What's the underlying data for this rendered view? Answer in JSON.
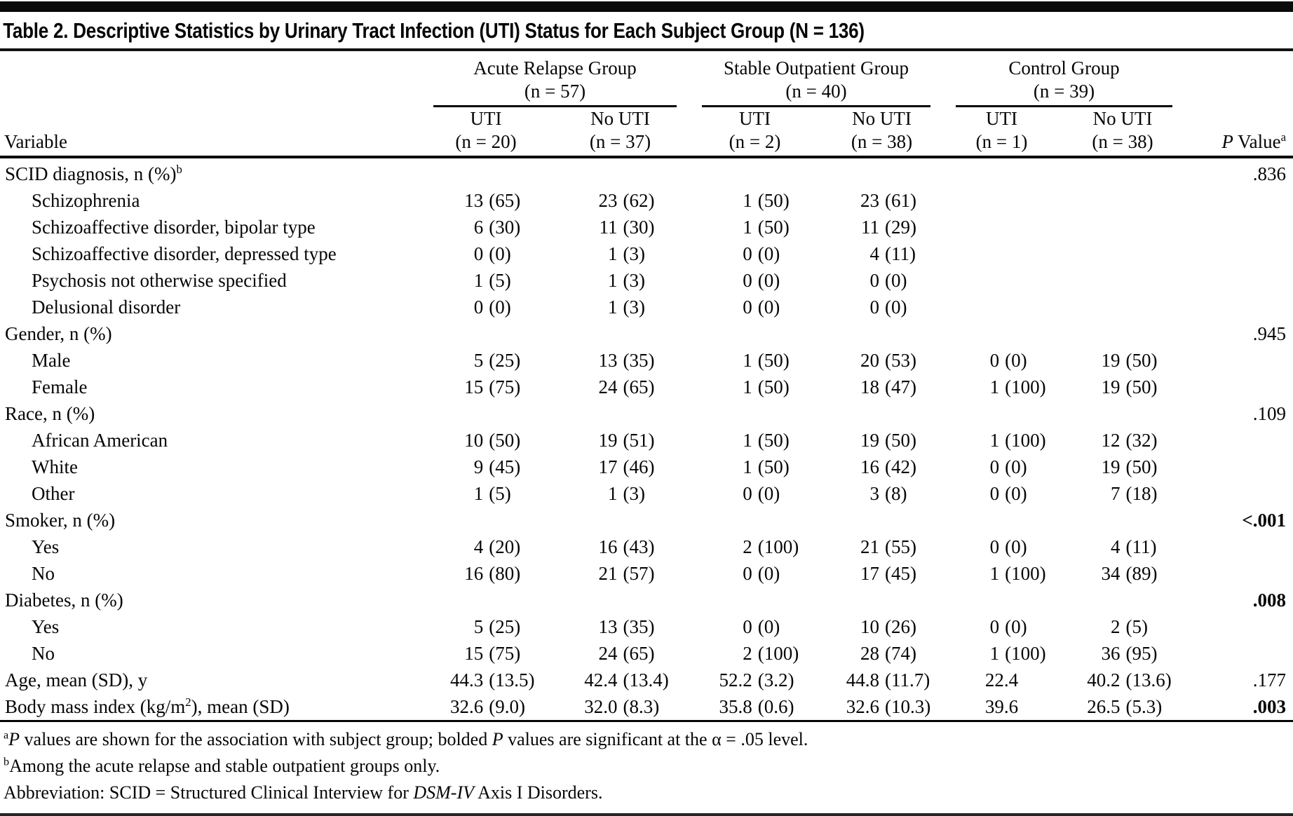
{
  "colors": {
    "background": "#ffffff",
    "text": "#060606",
    "rule": "#050505"
  },
  "title": "Table 2. Descriptive Statistics by Urinary Tract Infection (UTI) Status for Each Subject Group (N = 136)",
  "header": {
    "variable_label": "Variable",
    "p_label": {
      "italic": "P",
      "rest": " Value",
      "sup": "a"
    },
    "groups": [
      {
        "name": "Acute Relapse Group",
        "n": "(n = 57)"
      },
      {
        "name": "Stable Outpatient Group",
        "n": "(n = 40)"
      },
      {
        "name": "Control Group",
        "n": "(n = 39)"
      }
    ],
    "subcolumns": [
      {
        "label": "UTI",
        "n": "(n = 20)"
      },
      {
        "label": "No UTI",
        "n": "(n = 37)"
      },
      {
        "label": "UTI",
        "n": "(n = 2)"
      },
      {
        "label": "No UTI",
        "n": "(n = 38)"
      },
      {
        "label": "UTI",
        "n": "(n = 1)"
      },
      {
        "label": "No UTI",
        "n": "(n = 38)"
      }
    ]
  },
  "rows": [
    {
      "label_parts": [
        {
          "t": "SCID diagnosis, n (%)"
        },
        {
          "t": "b",
          "sup": true
        }
      ],
      "indent": 0,
      "values": [
        "",
        "",
        "",
        "",
        "",
        ""
      ],
      "p": ".836",
      "p_bold": false
    },
    {
      "label_parts": [
        {
          "t": "Schizophrenia"
        }
      ],
      "indent": 1,
      "values": [
        "13 (65)",
        "23 (62)",
        "1 (50)",
        "23 (61)",
        "",
        ""
      ],
      "p": "",
      "p_bold": false
    },
    {
      "label_parts": [
        {
          "t": "Schizoaffective disorder, bipolar type"
        }
      ],
      "indent": 1,
      "values": [
        "6 (30)",
        "11 (30)",
        "1 (50)",
        "11 (29)",
        "",
        ""
      ],
      "p": "",
      "p_bold": false
    },
    {
      "label_parts": [
        {
          "t": "Schizoaffective disorder, depressed type"
        }
      ],
      "indent": 1,
      "values": [
        "0 (0)",
        "1 (3)",
        "0 (0)",
        "4 (11)",
        "",
        ""
      ],
      "p": "",
      "p_bold": false
    },
    {
      "label_parts": [
        {
          "t": "Psychosis not otherwise specified"
        }
      ],
      "indent": 1,
      "values": [
        "1 (5)",
        "1 (3)",
        "0 (0)",
        "0 (0)",
        "",
        ""
      ],
      "p": "",
      "p_bold": false
    },
    {
      "label_parts": [
        {
          "t": "Delusional disorder"
        }
      ],
      "indent": 1,
      "values": [
        "0 (0)",
        "1 (3)",
        "0 (0)",
        "0 (0)",
        "",
        ""
      ],
      "p": "",
      "p_bold": false
    },
    {
      "label_parts": [
        {
          "t": "Gender, n (%)"
        }
      ],
      "indent": 0,
      "values": [
        "",
        "",
        "",
        "",
        "",
        ""
      ],
      "p": ".945",
      "p_bold": false
    },
    {
      "label_parts": [
        {
          "t": "Male"
        }
      ],
      "indent": 1,
      "values": [
        "5 (25)",
        "13 (35)",
        "1 (50)",
        "20 (53)",
        "0 (0)",
        "19 (50)"
      ],
      "p": "",
      "p_bold": false
    },
    {
      "label_parts": [
        {
          "t": "Female"
        }
      ],
      "indent": 1,
      "values": [
        "15 (75)",
        "24 (65)",
        "1 (50)",
        "18 (47)",
        "1 (100)",
        "19 (50)"
      ],
      "p": "",
      "p_bold": false
    },
    {
      "label_parts": [
        {
          "t": "Race, n (%)"
        }
      ],
      "indent": 0,
      "values": [
        "",
        "",
        "",
        "",
        "",
        ""
      ],
      "p": ".109",
      "p_bold": false
    },
    {
      "label_parts": [
        {
          "t": "African American"
        }
      ],
      "indent": 1,
      "values": [
        "10 (50)",
        "19 (51)",
        "1 (50)",
        "19 (50)",
        "1 (100)",
        "12 (32)"
      ],
      "p": "",
      "p_bold": false
    },
    {
      "label_parts": [
        {
          "t": "White"
        }
      ],
      "indent": 1,
      "values": [
        "9 (45)",
        "17 (46)",
        "1 (50)",
        "16 (42)",
        "0 (0)",
        "19 (50)"
      ],
      "p": "",
      "p_bold": false
    },
    {
      "label_parts": [
        {
          "t": "Other"
        }
      ],
      "indent": 1,
      "values": [
        "1 (5)",
        "1 (3)",
        "0 (0)",
        "3 (8)",
        "0 (0)",
        "7 (18)"
      ],
      "p": "",
      "p_bold": false
    },
    {
      "label_parts": [
        {
          "t": "Smoker, n (%)"
        }
      ],
      "indent": 0,
      "values": [
        "",
        "",
        "",
        "",
        "",
        ""
      ],
      "p": "<.001",
      "p_bold": true
    },
    {
      "label_parts": [
        {
          "t": "Yes"
        }
      ],
      "indent": 1,
      "values": [
        "4 (20)",
        "16 (43)",
        "2 (100)",
        "21 (55)",
        "0 (0)",
        "4 (11)"
      ],
      "p": "",
      "p_bold": false
    },
    {
      "label_parts": [
        {
          "t": "No"
        }
      ],
      "indent": 1,
      "values": [
        "16 (80)",
        "21 (57)",
        "0 (0)",
        "17 (45)",
        "1 (100)",
        "34 (89)"
      ],
      "p": "",
      "p_bold": false
    },
    {
      "label_parts": [
        {
          "t": "Diabetes, n (%)"
        }
      ],
      "indent": 0,
      "values": [
        "",
        "",
        "",
        "",
        "",
        ""
      ],
      "p": ".008",
      "p_bold": true
    },
    {
      "label_parts": [
        {
          "t": "Yes"
        }
      ],
      "indent": 1,
      "values": [
        "5 (25)",
        "13 (35)",
        "0 (0)",
        "10 (26)",
        "0 (0)",
        "2 (5)"
      ],
      "p": "",
      "p_bold": false
    },
    {
      "label_parts": [
        {
          "t": "No"
        }
      ],
      "indent": 1,
      "values": [
        "15 (75)",
        "24 (65)",
        "2 (100)",
        "28 (74)",
        "1 (100)",
        "36 (95)"
      ],
      "p": "",
      "p_bold": false
    },
    {
      "label_parts": [
        {
          "t": "Age, mean (SD), y"
        }
      ],
      "indent": 0,
      "values": [
        "44.3 (13.5)",
        "42.4 (13.4)",
        "52.2 (3.2)",
        "44.8 (11.7)",
        "22.4",
        "40.2 (13.6)"
      ],
      "p": ".177",
      "p_bold": false
    },
    {
      "label_parts": [
        {
          "t": "Body mass index (kg/m"
        },
        {
          "t": "2",
          "sup": true
        },
        {
          "t": "), mean (SD)"
        }
      ],
      "indent": 0,
      "values": [
        "32.6 (9.0)",
        "32.0 (8.3)",
        "35.8 (0.6)",
        "32.6 (10.3)",
        "39.6",
        "26.5 (5.3)"
      ],
      "p": ".003",
      "p_bold": true
    }
  ],
  "footnotes": [
    [
      {
        "t": "a",
        "sup": true
      },
      {
        "t": "P",
        "italic": true
      },
      {
        "t": " values are shown for the association with subject group; bolded "
      },
      {
        "t": "P",
        "italic": true
      },
      {
        "t": " values are significant at the α = .05 level."
      }
    ],
    [
      {
        "t": "b",
        "sup": true
      },
      {
        "t": "Among the acute relapse and stable outpatient groups only."
      }
    ],
    [
      {
        "t": "Abbreviation: SCID = Structured Clinical Interview for "
      },
      {
        "t": "DSM-IV",
        "italic": true
      },
      {
        "t": " Axis I Disorders."
      }
    ]
  ]
}
